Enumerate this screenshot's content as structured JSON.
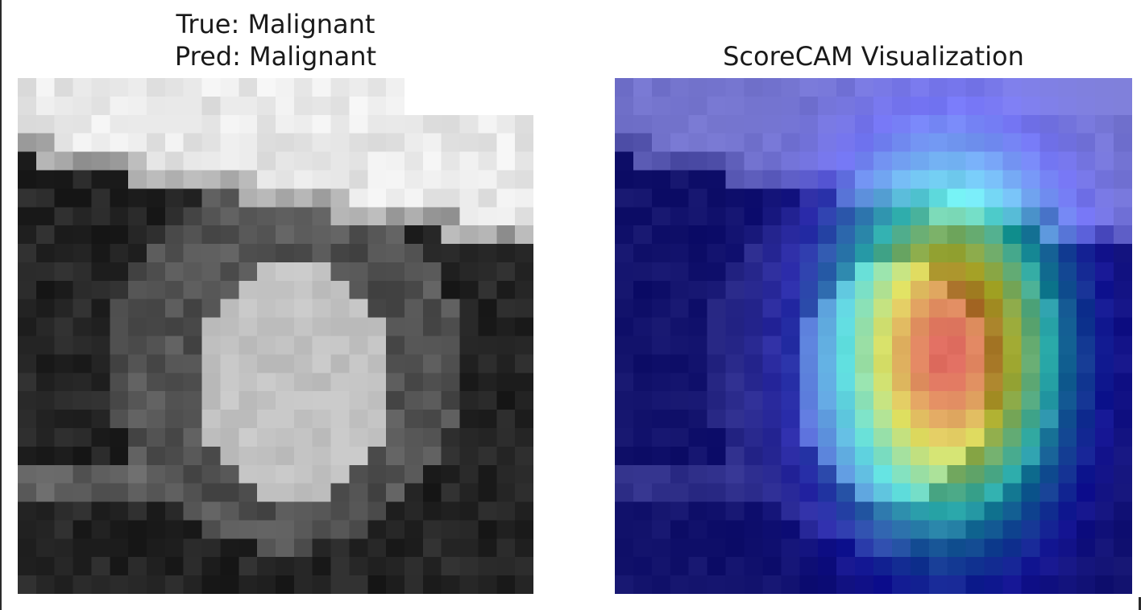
{
  "panels": {
    "left": {
      "title_line_1": "True: Malignant",
      "title_line_2": "Pred: Malignant"
    },
    "right": {
      "title": "ScoreCAM Visualization"
    }
  },
  "image": {
    "grid": 28,
    "colormap": "jet",
    "overlay_alpha": 0.5
  }
}
